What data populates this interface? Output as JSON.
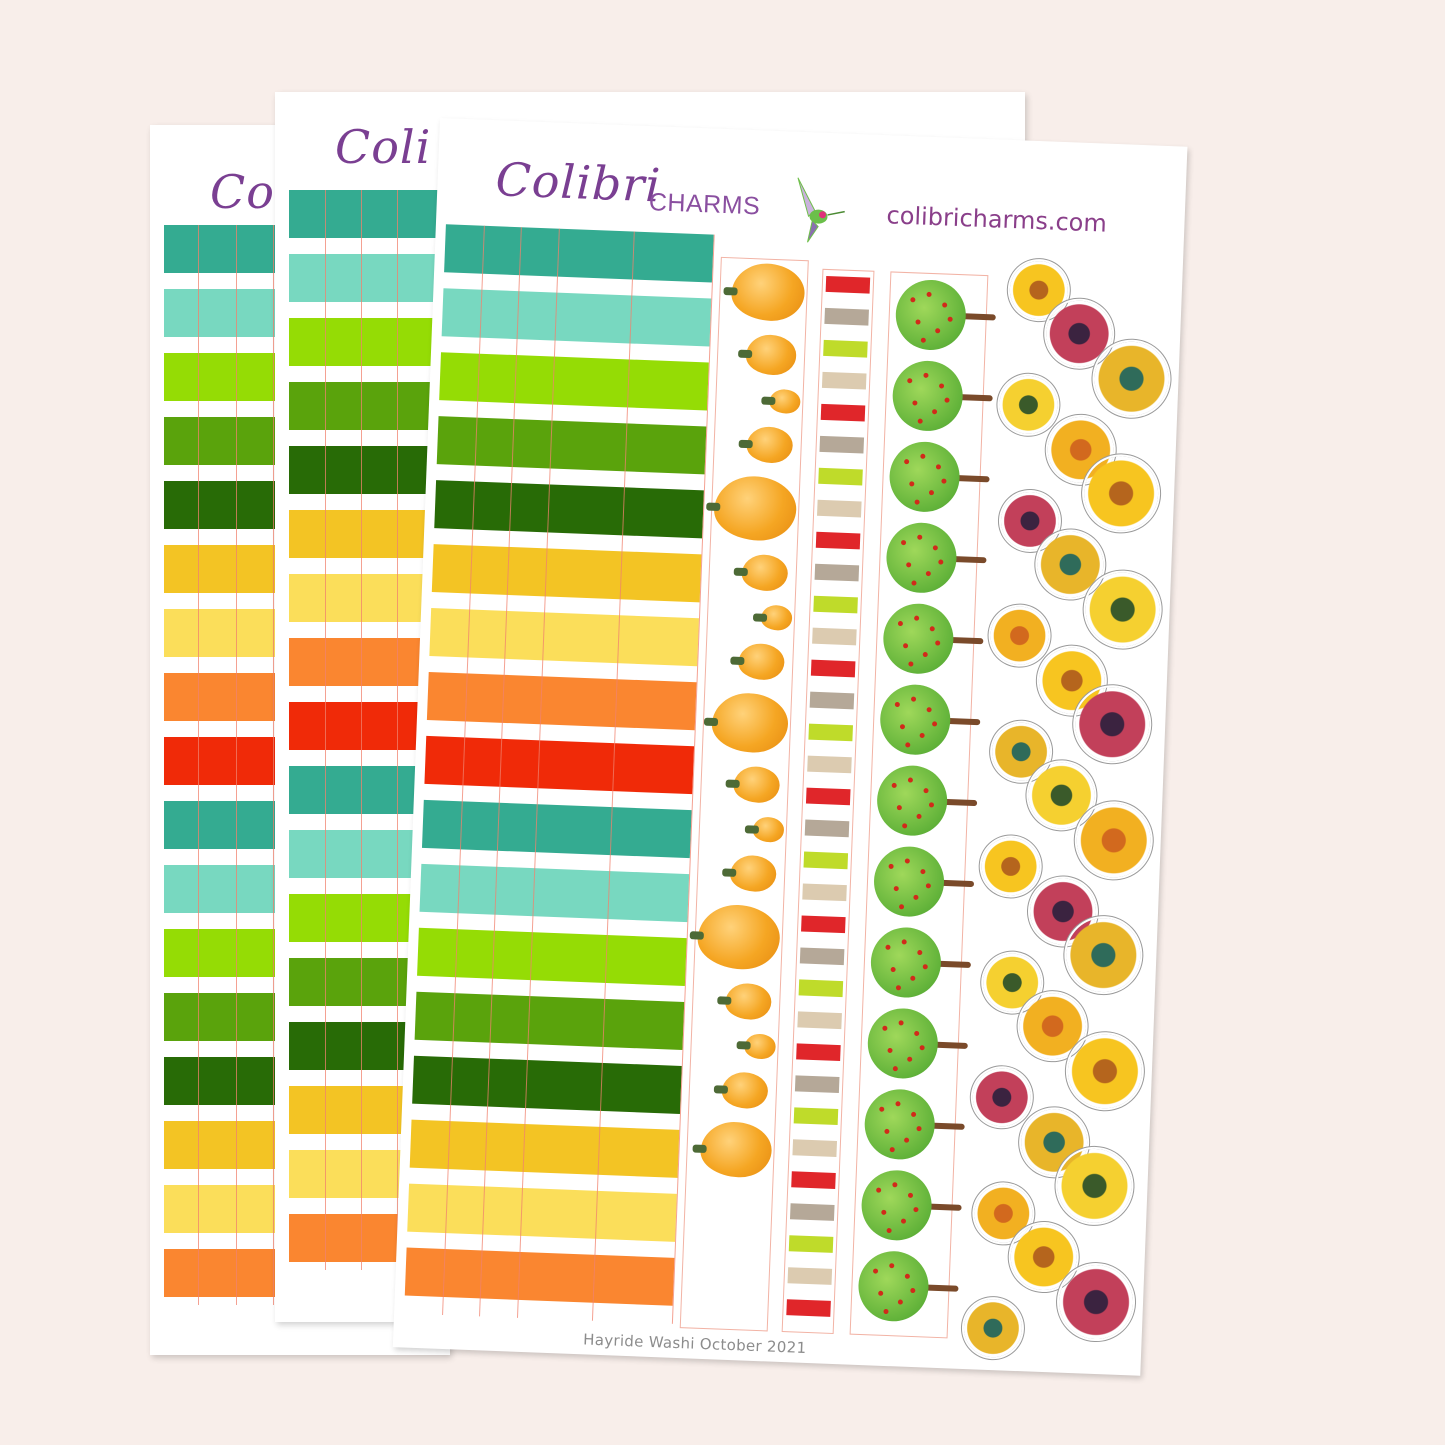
{
  "scene": {
    "background": "#f8eeea",
    "description": "Three overlapping printable planner sticker sheets, rotated slightly"
  },
  "brand": {
    "script_name": "Colibri",
    "caps_name": "CHARMS",
    "website": "colibricharms.com",
    "logo_icon": "hummingbird-icon",
    "text_color": "#7a3f92"
  },
  "sheets": [
    {
      "id": "back-sheet",
      "visible_header": "Co",
      "washi_colors": [
        "#34ab91",
        "#78d8c0",
        "#95dc05",
        "#5aa30c",
        "#286b06",
        "#f3c424",
        "#fbde5a",
        "#fa8630",
        "#f02a08",
        "#34ab91",
        "#78d8c0",
        "#95dc05",
        "#5aa30c",
        "#286b06",
        "#f3c424",
        "#fbde5a",
        "#fa8630"
      ]
    },
    {
      "id": "middle-sheet",
      "visible_header": "Coli",
      "visible_website": "colibricharms.com",
      "washi_colors": [
        "#34ab91",
        "#78d8c0",
        "#95dc05",
        "#5aa30c",
        "#286b06",
        "#f3c424",
        "#fbde5a",
        "#fa8630",
        "#f02a08",
        "#34ab91",
        "#78d8c0",
        "#95dc05",
        "#5aa30c",
        "#286b06",
        "#f3c424",
        "#fbde5a",
        "#fa8630"
      ]
    },
    {
      "id": "front-sheet",
      "washi_colors": [
        "#34ab91",
        "#78d8c0",
        "#95dc05",
        "#5aa30c",
        "#286b06",
        "#f3c424",
        "#fbde5a",
        "#fa8630",
        "#f02a08",
        "#34ab91",
        "#78d8c0",
        "#95dc05",
        "#5aa30c",
        "#286b06",
        "#f3c424",
        "#fbde5a",
        "#fa8630"
      ],
      "strips": [
        {
          "name": "pumpkin-strip",
          "motif": "watercolor orange pumpkins"
        },
        {
          "name": "stripe-strip",
          "motif": "repeating colored bars",
          "colors": [
            "#e0262a",
            "#b5a898",
            "#bfdb2a",
            "#dccbb0"
          ]
        },
        {
          "name": "tree-strip",
          "motif": "green apple trees with red apples"
        },
        {
          "name": "sunflower-strip",
          "motif": "die-cut sunflower border"
        }
      ],
      "caption": "Hayride Washi October 2021"
    }
  ]
}
